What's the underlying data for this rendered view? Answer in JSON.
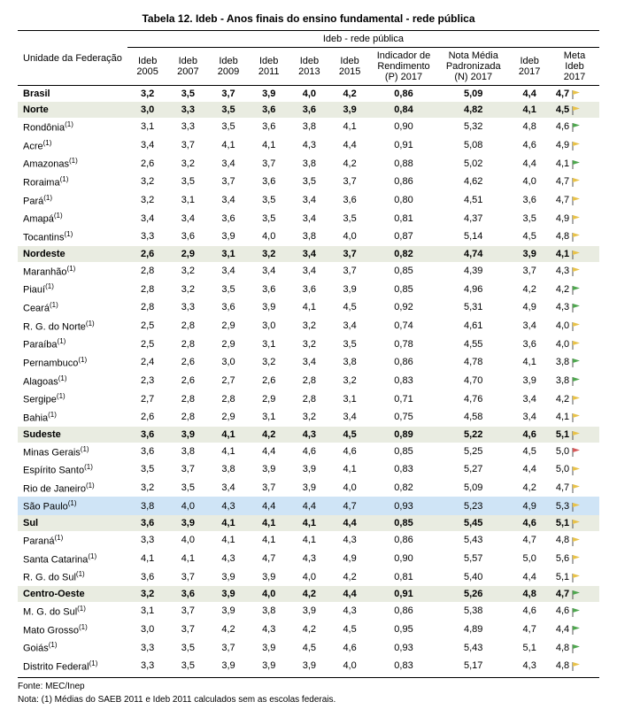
{
  "title": "Tabela 12. Ideb - Anos finais do ensino fundamental - rede pública",
  "header": {
    "unit": "Unidade da Federação",
    "group": "Ideb - rede pública",
    "cols": [
      "Ideb 2005",
      "Ideb 2007",
      "Ideb 2009",
      "Ideb 2011",
      "Ideb 2013",
      "Ideb 2015",
      "Indicador de Rendimento (P) 2017",
      "Nota Média Padronizada (N) 2017",
      "Ideb 2017",
      "Meta Ideb 2017"
    ]
  },
  "flag_colors": {
    "green": "#4fa64f",
    "yellow": "#e8c24a",
    "red": "#d65a5a"
  },
  "rows": [
    {
      "type": "bold",
      "unit": "Brasil",
      "sup": "",
      "v": [
        "3,2",
        "3,5",
        "3,7",
        "3,9",
        "4,0",
        "4,2",
        "0,86",
        "5,09",
        "4,4",
        "4,7"
      ],
      "flag": "yellow"
    },
    {
      "type": "region",
      "unit": "Norte",
      "sup": "",
      "v": [
        "3,0",
        "3,3",
        "3,5",
        "3,6",
        "3,6",
        "3,9",
        "0,84",
        "4,82",
        "4,1",
        "4,5"
      ],
      "flag": "yellow"
    },
    {
      "type": "row",
      "unit": "Rondônia",
      "sup": "(1)",
      "v": [
        "3,1",
        "3,3",
        "3,5",
        "3,6",
        "3,8",
        "4,1",
        "0,90",
        "5,32",
        "4,8",
        "4,6"
      ],
      "flag": "green"
    },
    {
      "type": "row",
      "unit": "Acre",
      "sup": "(1)",
      "v": [
        "3,4",
        "3,7",
        "4,1",
        "4,1",
        "4,3",
        "4,4",
        "0,91",
        "5,08",
        "4,6",
        "4,9"
      ],
      "flag": "yellow"
    },
    {
      "type": "row",
      "unit": "Amazonas",
      "sup": "(1)",
      "v": [
        "2,6",
        "3,2",
        "3,4",
        "3,7",
        "3,8",
        "4,2",
        "0,88",
        "5,02",
        "4,4",
        "4,1"
      ],
      "flag": "green"
    },
    {
      "type": "row",
      "unit": "Roraima",
      "sup": "(1)",
      "v": [
        "3,2",
        "3,5",
        "3,7",
        "3,6",
        "3,5",
        "3,7",
        "0,86",
        "4,62",
        "4,0",
        "4,7"
      ],
      "flag": "yellow"
    },
    {
      "type": "row",
      "unit": "Pará",
      "sup": "(1)",
      "v": [
        "3,2",
        "3,1",
        "3,4",
        "3,5",
        "3,4",
        "3,6",
        "0,80",
        "4,51",
        "3,6",
        "4,7"
      ],
      "flag": "yellow"
    },
    {
      "type": "row",
      "unit": "Amapá",
      "sup": "(1)",
      "v": [
        "3,4",
        "3,4",
        "3,6",
        "3,5",
        "3,4",
        "3,5",
        "0,81",
        "4,37",
        "3,5",
        "4,9"
      ],
      "flag": "yellow"
    },
    {
      "type": "row",
      "unit": "Tocantins",
      "sup": "(1)",
      "v": [
        "3,3",
        "3,6",
        "3,9",
        "4,0",
        "3,8",
        "4,0",
        "0,87",
        "5,14",
        "4,5",
        "4,8"
      ],
      "flag": "yellow"
    },
    {
      "type": "region",
      "unit": "Nordeste",
      "sup": "",
      "v": [
        "2,6",
        "2,9",
        "3,1",
        "3,2",
        "3,4",
        "3,7",
        "0,82",
        "4,74",
        "3,9",
        "4,1"
      ],
      "flag": "yellow"
    },
    {
      "type": "row",
      "unit": "Maranhão",
      "sup": "(1)",
      "v": [
        "2,8",
        "3,2",
        "3,4",
        "3,4",
        "3,4",
        "3,7",
        "0,85",
        "4,39",
        "3,7",
        "4,3"
      ],
      "flag": "yellow"
    },
    {
      "type": "row",
      "unit": "Piauí",
      "sup": "(1)",
      "v": [
        "2,8",
        "3,2",
        "3,5",
        "3,6",
        "3,6",
        "3,9",
        "0,85",
        "4,96",
        "4,2",
        "4,2"
      ],
      "flag": "green"
    },
    {
      "type": "row",
      "unit": "Ceará",
      "sup": "(1)",
      "v": [
        "2,8",
        "3,3",
        "3,6",
        "3,9",
        "4,1",
        "4,5",
        "0,92",
        "5,31",
        "4,9",
        "4,3"
      ],
      "flag": "green"
    },
    {
      "type": "row",
      "unit": "R. G. do Norte",
      "sup": "(1)",
      "v": [
        "2,5",
        "2,8",
        "2,9",
        "3,0",
        "3,2",
        "3,4",
        "0,74",
        "4,61",
        "3,4",
        "4,0"
      ],
      "flag": "yellow"
    },
    {
      "type": "row",
      "unit": "Paraíba",
      "sup": "(1)",
      "v": [
        "2,5",
        "2,8",
        "2,9",
        "3,1",
        "3,2",
        "3,5",
        "0,78",
        "4,55",
        "3,6",
        "4,0"
      ],
      "flag": "yellow"
    },
    {
      "type": "row",
      "unit": "Pernambuco",
      "sup": "(1)",
      "v": [
        "2,4",
        "2,6",
        "3,0",
        "3,2",
        "3,4",
        "3,8",
        "0,86",
        "4,78",
        "4,1",
        "3,8"
      ],
      "flag": "green"
    },
    {
      "type": "row",
      "unit": "Alagoas",
      "sup": "(1)",
      "v": [
        "2,3",
        "2,6",
        "2,7",
        "2,6",
        "2,8",
        "3,2",
        "0,83",
        "4,70",
        "3,9",
        "3,8"
      ],
      "flag": "green"
    },
    {
      "type": "row",
      "unit": "Sergipe",
      "sup": "(1)",
      "v": [
        "2,7",
        "2,8",
        "2,8",
        "2,9",
        "2,8",
        "3,1",
        "0,71",
        "4,76",
        "3,4",
        "4,2"
      ],
      "flag": "yellow"
    },
    {
      "type": "row",
      "unit": "Bahia",
      "sup": "(1)",
      "v": [
        "2,6",
        "2,8",
        "2,9",
        "3,1",
        "3,2",
        "3,4",
        "0,75",
        "4,58",
        "3,4",
        "4,1"
      ],
      "flag": "yellow"
    },
    {
      "type": "region",
      "unit": "Sudeste",
      "sup": "",
      "v": [
        "3,6",
        "3,9",
        "4,1",
        "4,2",
        "4,3",
        "4,5",
        "0,89",
        "5,22",
        "4,6",
        "5,1"
      ],
      "flag": "yellow"
    },
    {
      "type": "row",
      "unit": "Minas Gerais",
      "sup": "(1)",
      "v": [
        "3,6",
        "3,8",
        "4,1",
        "4,4",
        "4,6",
        "4,6",
        "0,85",
        "5,25",
        "4,5",
        "5,0"
      ],
      "flag": "red"
    },
    {
      "type": "row",
      "unit": "Espírito Santo",
      "sup": "(1)",
      "v": [
        "3,5",
        "3,7",
        "3,8",
        "3,9",
        "3,9",
        "4,1",
        "0,83",
        "5,27",
        "4,4",
        "5,0"
      ],
      "flag": "yellow"
    },
    {
      "type": "row",
      "unit": "Rio de Janeiro",
      "sup": "(1)",
      "v": [
        "3,2",
        "3,5",
        "3,4",
        "3,7",
        "3,9",
        "4,0",
        "0,82",
        "5,09",
        "4,2",
        "4,7"
      ],
      "flag": "yellow"
    },
    {
      "type": "highlight",
      "unit": "São Paulo",
      "sup": "(1)",
      "v": [
        "3,8",
        "4,0",
        "4,3",
        "4,4",
        "4,4",
        "4,7",
        "0,93",
        "5,23",
        "4,9",
        "5,3"
      ],
      "flag": "yellow"
    },
    {
      "type": "region",
      "unit": "Sul",
      "sup": "",
      "v": [
        "3,6",
        "3,9",
        "4,1",
        "4,1",
        "4,1",
        "4,4",
        "0,85",
        "5,45",
        "4,6",
        "5,1"
      ],
      "flag": "yellow"
    },
    {
      "type": "row",
      "unit": "Paraná",
      "sup": "(1)",
      "v": [
        "3,3",
        "4,0",
        "4,1",
        "4,1",
        "4,1",
        "4,3",
        "0,86",
        "5,43",
        "4,7",
        "4,8"
      ],
      "flag": "yellow"
    },
    {
      "type": "row",
      "unit": "Santa Catarina",
      "sup": "(1)",
      "v": [
        "4,1",
        "4,1",
        "4,3",
        "4,7",
        "4,3",
        "4,9",
        "0,90",
        "5,57",
        "5,0",
        "5,6"
      ],
      "flag": "yellow"
    },
    {
      "type": "row",
      "unit": "R. G. do Sul",
      "sup": "(1)",
      "v": [
        "3,6",
        "3,7",
        "3,9",
        "3,9",
        "4,0",
        "4,2",
        "0,81",
        "5,40",
        "4,4",
        "5,1"
      ],
      "flag": "yellow"
    },
    {
      "type": "region",
      "unit": "Centro-Oeste",
      "sup": "",
      "v": [
        "3,2",
        "3,6",
        "3,9",
        "4,0",
        "4,2",
        "4,4",
        "0,91",
        "5,26",
        "4,8",
        "4,7"
      ],
      "flag": "green"
    },
    {
      "type": "row",
      "unit": "M. G. do Sul",
      "sup": "(1)",
      "v": [
        "3,1",
        "3,7",
        "3,9",
        "3,8",
        "3,9",
        "4,3",
        "0,86",
        "5,38",
        "4,6",
        "4,6"
      ],
      "flag": "green"
    },
    {
      "type": "row",
      "unit": "Mato Grosso",
      "sup": "(1)",
      "v": [
        "3,0",
        "3,7",
        "4,2",
        "4,3",
        "4,2",
        "4,5",
        "0,95",
        "4,89",
        "4,7",
        "4,4"
      ],
      "flag": "green"
    },
    {
      "type": "row",
      "unit": "Goiás",
      "sup": "(1)",
      "v": [
        "3,3",
        "3,5",
        "3,7",
        "3,9",
        "4,5",
        "4,6",
        "0,93",
        "5,43",
        "5,1",
        "4,8"
      ],
      "flag": "green"
    },
    {
      "type": "row",
      "unit": "Distrito Federal",
      "sup": "(1)",
      "v": [
        "3,3",
        "3,5",
        "3,9",
        "3,9",
        "3,9",
        "4,0",
        "0,83",
        "5,17",
        "4,3",
        "4,8"
      ],
      "flag": "yellow"
    }
  ],
  "footer": {
    "source": "Fonte: MEC/Inep",
    "note": "Nota: (1) Médias do SAEB 2011 e Ideb 2011 calculados sem as escolas federais."
  },
  "col_widths": [
    "120",
    "45",
    "45",
    "45",
    "45",
    "45",
    "45",
    "75",
    "80",
    "45",
    "55"
  ]
}
